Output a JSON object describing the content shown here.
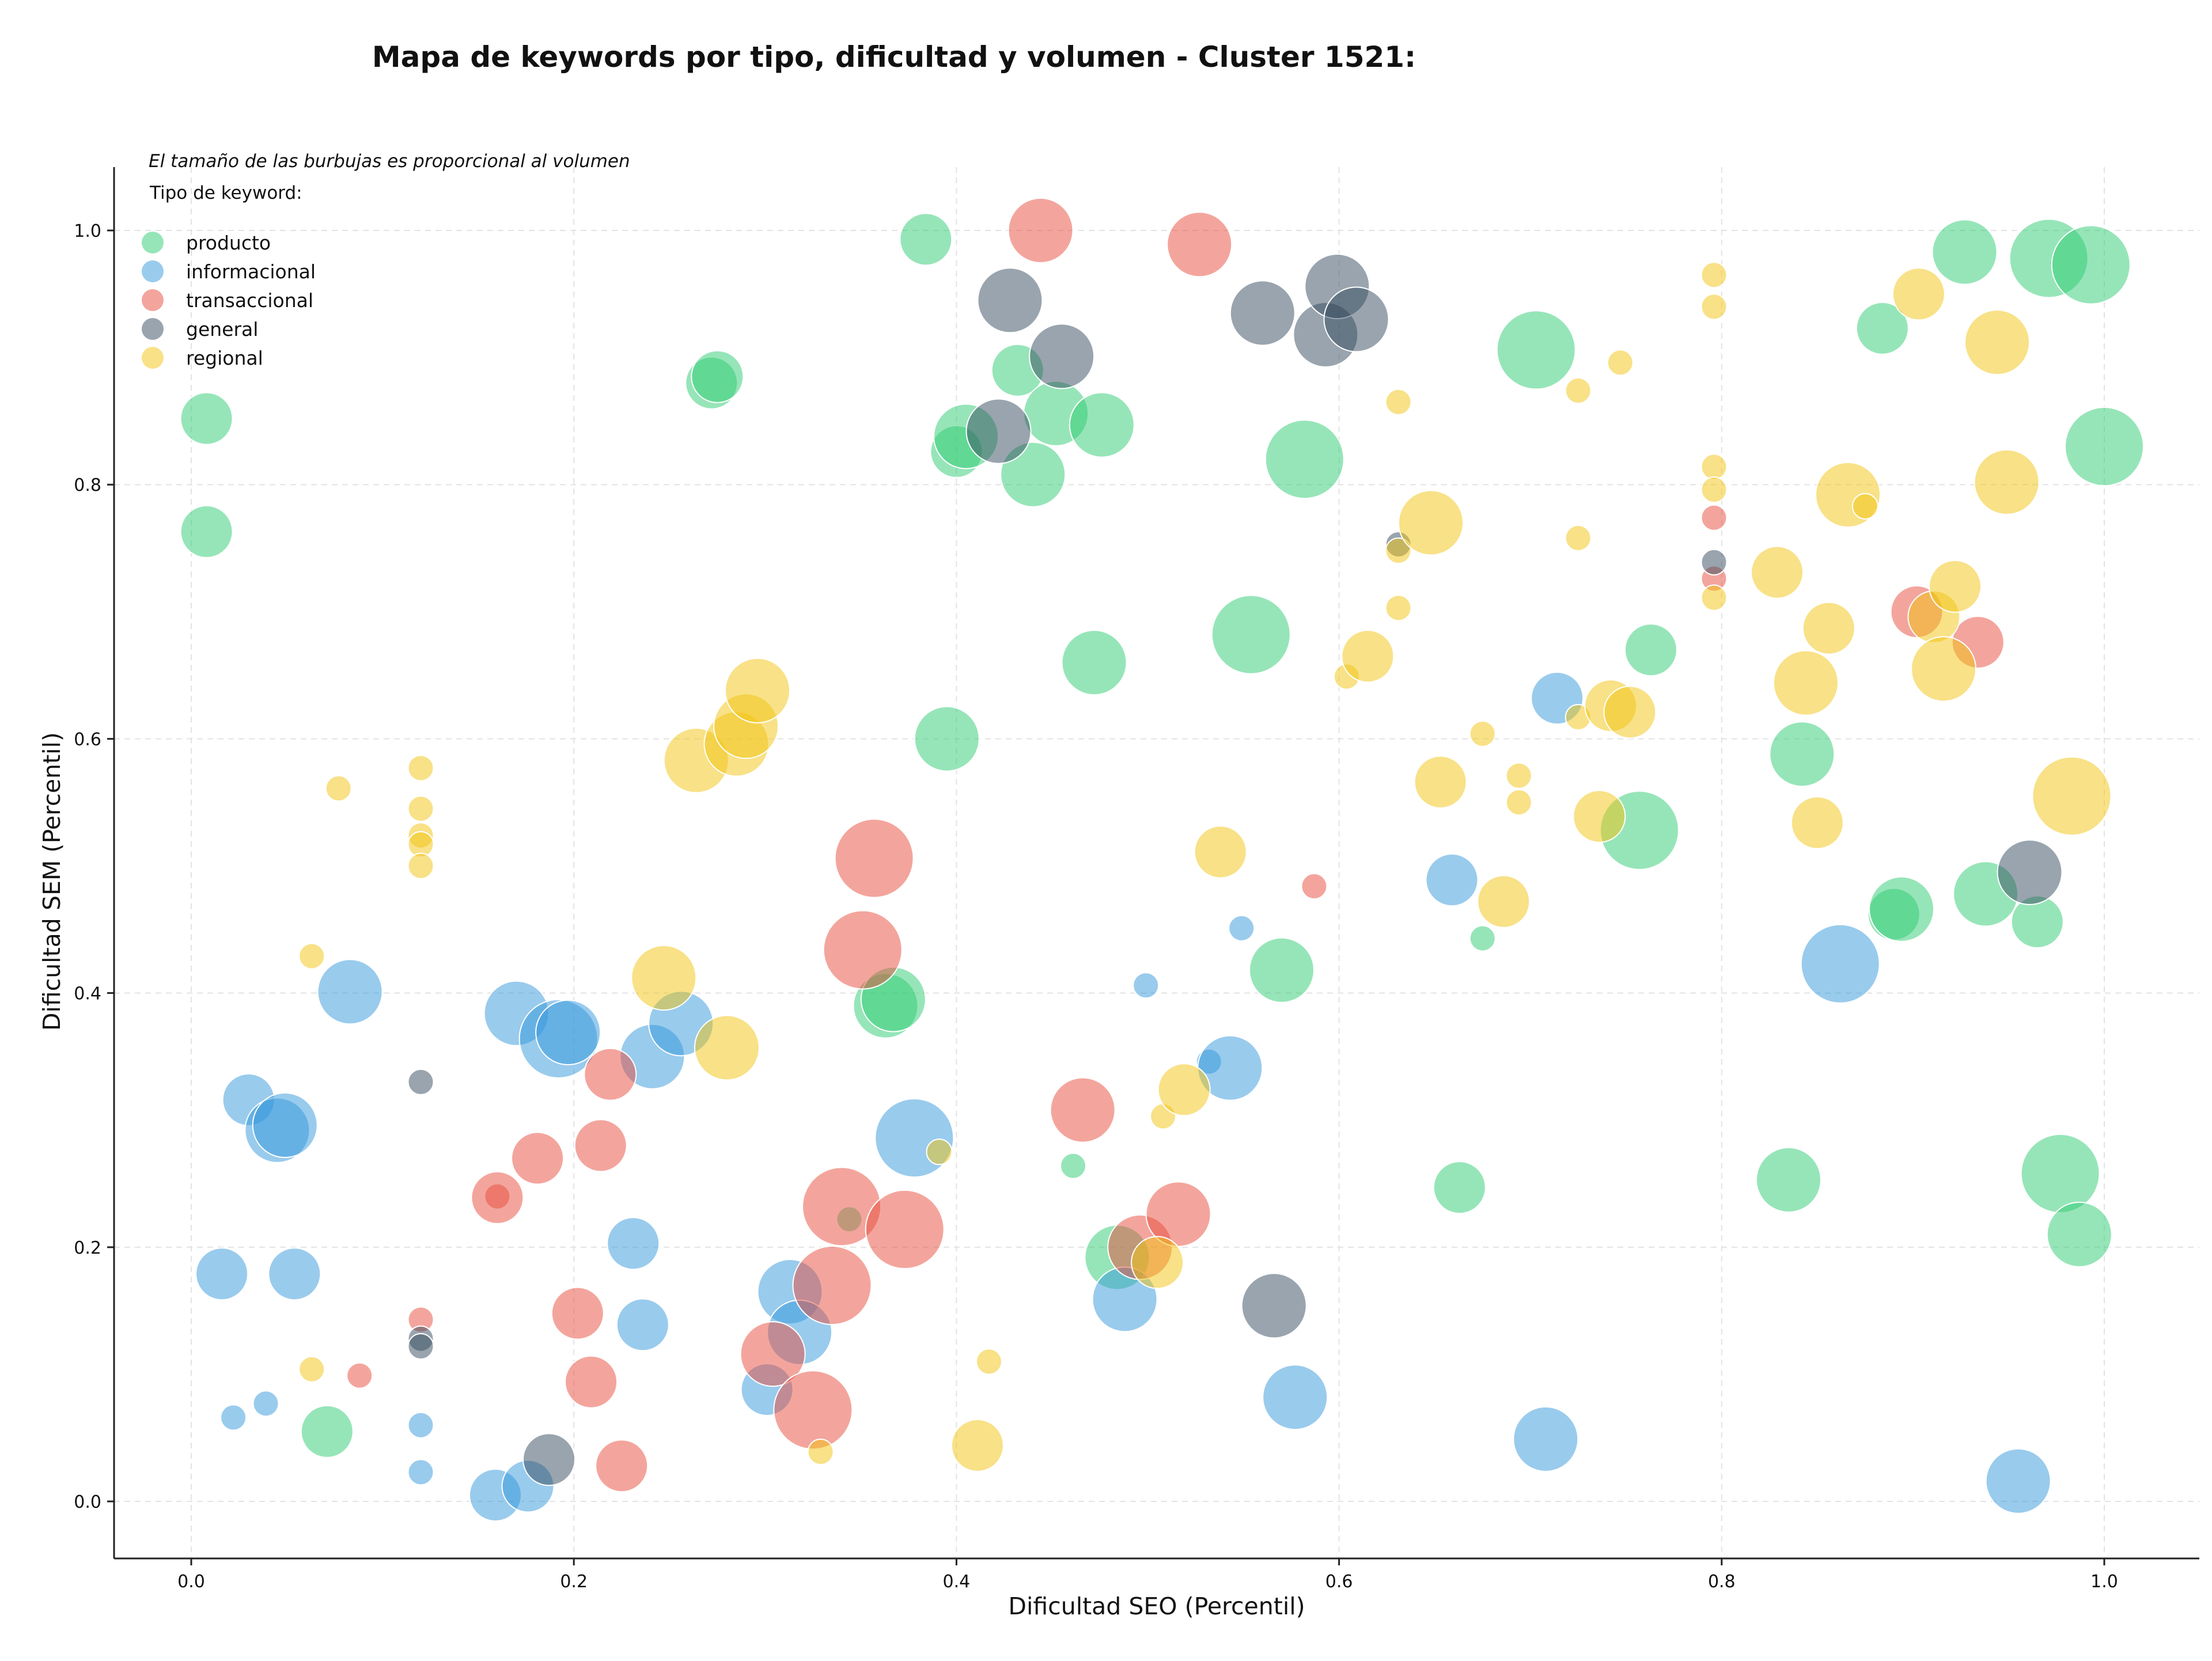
{
  "chart_data": {
    "type": "scatter",
    "title": "Mapa de keywords por tipo, dificultad y volumen - Cluster 1521:",
    "xlabel": "Dificultad SEO (Percentil)",
    "ylabel": "Dificultad SEM (Percentil)",
    "note": "El tamaño de las burbujas es proporcional al volumen",
    "legend_title": "Tipo de keyword:",
    "legend_position": "top-left",
    "grid": true,
    "xlim": [
      -0.04,
      1.05
    ],
    "ylim": [
      -0.043,
      1.05
    ],
    "xticks": [
      0.0,
      0.2,
      0.4,
      0.6,
      0.8,
      1.0
    ],
    "yticks": [
      0.0,
      0.2,
      0.4,
      0.6,
      0.8,
      1.0
    ],
    "xtick_labels": [
      "0.0",
      "0.2",
      "0.4",
      "0.6",
      "0.8",
      "1.0"
    ],
    "ytick_labels": [
      "0.0",
      "0.2",
      "0.4",
      "0.6",
      "0.8",
      "1.0"
    ],
    "size_encoding": "relative volume 1-5",
    "series": [
      {
        "name": "producto",
        "color": "#2ecc71",
        "points": [
          [
            0.008,
            0.852,
            2
          ],
          [
            0.008,
            0.763,
            2
          ],
          [
            0.272,
            0.88,
            2
          ],
          [
            0.275,
            0.885,
            2
          ],
          [
            0.384,
            0.993,
            2
          ],
          [
            0.4,
            0.826,
            2
          ],
          [
            0.405,
            0.838,
            3
          ],
          [
            0.432,
            0.89,
            2
          ],
          [
            0.44,
            0.808,
            3
          ],
          [
            0.452,
            0.856,
            3
          ],
          [
            0.476,
            0.847,
            3
          ],
          [
            0.582,
            0.82,
            4
          ],
          [
            0.703,
            0.906,
            4
          ],
          [
            0.395,
            0.6,
            3
          ],
          [
            0.472,
            0.66,
            3
          ],
          [
            0.554,
            0.682,
            4
          ],
          [
            0.763,
            0.67,
            2
          ],
          [
            0.842,
            0.588,
            3
          ],
          [
            0.757,
            0.528,
            4
          ],
          [
            0.57,
            0.418,
            3
          ],
          [
            0.363,
            0.39,
            3
          ],
          [
            0.367,
            0.395,
            3
          ],
          [
            0.675,
            0.443,
            1
          ],
          [
            0.89,
            0.462,
            2
          ],
          [
            0.894,
            0.466,
            3
          ],
          [
            0.938,
            0.478,
            3
          ],
          [
            0.965,
            0.456,
            2
          ],
          [
            0.884,
            0.923,
            2
          ],
          [
            0.927,
            0.983,
            3
          ],
          [
            0.971,
            0.978,
            4
          ],
          [
            0.993,
            0.973,
            4
          ],
          [
            1.0,
            0.83,
            4
          ],
          [
            0.461,
            0.264,
            1
          ],
          [
            0.484,
            0.192,
            3
          ],
          [
            0.663,
            0.247,
            2
          ],
          [
            0.835,
            0.253,
            3
          ],
          [
            0.977,
            0.258,
            4
          ],
          [
            0.987,
            0.21,
            3
          ],
          [
            0.071,
            0.055,
            2
          ],
          [
            0.344,
            0.222,
            1
          ]
        ]
      },
      {
        "name": "informacional",
        "color": "#3498db",
        "points": [
          [
            0.083,
            0.401,
            3
          ],
          [
            0.17,
            0.384,
            3
          ],
          [
            0.192,
            0.364,
            4
          ],
          [
            0.197,
            0.369,
            3
          ],
          [
            0.241,
            0.35,
            3
          ],
          [
            0.256,
            0.376,
            3
          ],
          [
            0.03,
            0.316,
            2
          ],
          [
            0.045,
            0.292,
            3
          ],
          [
            0.049,
            0.296,
            3
          ],
          [
            0.016,
            0.179,
            2
          ],
          [
            0.054,
            0.179,
            2
          ],
          [
            0.231,
            0.203,
            2
          ],
          [
            0.236,
            0.139,
            2
          ],
          [
            0.022,
            0.066,
            1
          ],
          [
            0.039,
            0.077,
            1
          ],
          [
            0.12,
            0.06,
            1
          ],
          [
            0.12,
            0.023,
            1
          ],
          [
            0.159,
            0.005,
            2
          ],
          [
            0.176,
            0.012,
            2
          ],
          [
            0.301,
            0.088,
            2
          ],
          [
            0.313,
            0.165,
            3
          ],
          [
            0.318,
            0.133,
            3
          ],
          [
            0.378,
            0.286,
            4
          ],
          [
            0.488,
            0.159,
            3
          ],
          [
            0.499,
            0.406,
            1
          ],
          [
            0.532,
            0.346,
            1
          ],
          [
            0.543,
            0.341,
            3
          ],
          [
            0.549,
            0.451,
            1
          ],
          [
            0.577,
            0.082,
            3
          ],
          [
            0.659,
            0.489,
            2
          ],
          [
            0.708,
            0.049,
            3
          ],
          [
            0.714,
            0.632,
            2
          ],
          [
            0.862,
            0.423,
            4
          ],
          [
            0.955,
            0.016,
            3
          ]
        ]
      },
      {
        "name": "transaccional",
        "color": "#e74c3c",
        "points": [
          [
            0.444,
            1.0,
            3
          ],
          [
            0.527,
            0.989,
            3
          ],
          [
            0.357,
            0.506,
            4
          ],
          [
            0.351,
            0.434,
            4
          ],
          [
            0.219,
            0.336,
            2
          ],
          [
            0.214,
            0.28,
            2
          ],
          [
            0.181,
            0.27,
            2
          ],
          [
            0.16,
            0.24,
            1
          ],
          [
            0.16,
            0.239,
            2
          ],
          [
            0.34,
            0.232,
            4
          ],
          [
            0.373,
            0.214,
            4
          ],
          [
            0.335,
            0.17,
            4
          ],
          [
            0.304,
            0.116,
            3
          ],
          [
            0.325,
            0.072,
            4
          ],
          [
            0.202,
            0.148,
            2
          ],
          [
            0.209,
            0.094,
            2
          ],
          [
            0.225,
            0.028,
            2
          ],
          [
            0.12,
            0.143,
            1
          ],
          [
            0.088,
            0.099,
            1
          ],
          [
            0.466,
            0.308,
            3
          ],
          [
            0.496,
            0.2,
            3
          ],
          [
            0.516,
            0.226,
            3
          ],
          [
            0.587,
            0.484,
            1
          ],
          [
            0.796,
            0.774,
            1
          ],
          [
            0.796,
            0.726,
            1
          ],
          [
            0.902,
            0.7,
            2
          ],
          [
            0.934,
            0.676,
            2
          ]
        ]
      },
      {
        "name": "general",
        "color": "#34495e",
        "points": [
          [
            0.428,
            0.945,
            3
          ],
          [
            0.455,
            0.901,
            3
          ],
          [
            0.422,
            0.842,
            3
          ],
          [
            0.56,
            0.935,
            3
          ],
          [
            0.593,
            0.918,
            3
          ],
          [
            0.599,
            0.956,
            3
          ],
          [
            0.609,
            0.93,
            3
          ],
          [
            0.631,
            0.753,
            1
          ],
          [
            0.796,
            0.739,
            1
          ],
          [
            0.12,
            0.33,
            1
          ],
          [
            0.12,
            0.128,
            1
          ],
          [
            0.12,
            0.122,
            1
          ],
          [
            0.187,
            0.033,
            2
          ],
          [
            0.566,
            0.154,
            3
          ],
          [
            0.961,
            0.495,
            3
          ]
        ]
      },
      {
        "name": "regional",
        "color": "#f1c40f",
        "points": [
          [
            0.077,
            0.561,
            1
          ],
          [
            0.12,
            0.577,
            1
          ],
          [
            0.12,
            0.545,
            1
          ],
          [
            0.12,
            0.524,
            1
          ],
          [
            0.12,
            0.517,
            1
          ],
          [
            0.12,
            0.5,
            1
          ],
          [
            0.063,
            0.429,
            1
          ],
          [
            0.063,
            0.104,
            1
          ],
          [
            0.264,
            0.583,
            3
          ],
          [
            0.285,
            0.596,
            3
          ],
          [
            0.29,
            0.61,
            3
          ],
          [
            0.296,
            0.638,
            3
          ],
          [
            0.247,
            0.412,
            3
          ],
          [
            0.28,
            0.357,
            3
          ],
          [
            0.391,
            0.275,
            1
          ],
          [
            0.417,
            0.11,
            1
          ],
          [
            0.411,
            0.044,
            2
          ],
          [
            0.329,
            0.039,
            1
          ],
          [
            0.508,
            0.303,
            1
          ],
          [
            0.519,
            0.324,
            2
          ],
          [
            0.505,
            0.188,
            2
          ],
          [
            0.538,
            0.511,
            2
          ],
          [
            0.631,
            0.865,
            1
          ],
          [
            0.631,
            0.748,
            1
          ],
          [
            0.631,
            0.703,
            1
          ],
          [
            0.604,
            0.649,
            1
          ],
          [
            0.615,
            0.665,
            2
          ],
          [
            0.648,
            0.77,
            3
          ],
          [
            0.653,
            0.566,
            2
          ],
          [
            0.675,
            0.604,
            1
          ],
          [
            0.694,
            0.571,
            1
          ],
          [
            0.694,
            0.55,
            1
          ],
          [
            0.686,
            0.472,
            2
          ],
          [
            0.725,
            0.758,
            1
          ],
          [
            0.725,
            0.874,
            1
          ],
          [
            0.747,
            0.896,
            1
          ],
          [
            0.725,
            0.617,
            1
          ],
          [
            0.736,
            0.539,
            2
          ],
          [
            0.742,
            0.626,
            2
          ],
          [
            0.752,
            0.621,
            2
          ],
          [
            0.796,
            0.965,
            1
          ],
          [
            0.796,
            0.94,
            1
          ],
          [
            0.796,
            0.814,
            1
          ],
          [
            0.796,
            0.796,
            1
          ],
          [
            0.796,
            0.711,
            1
          ],
          [
            0.829,
            0.731,
            2
          ],
          [
            0.844,
            0.644,
            3
          ],
          [
            0.85,
            0.534,
            2
          ],
          [
            0.856,
            0.687,
            2
          ],
          [
            0.866,
            0.792,
            3
          ],
          [
            0.875,
            0.783,
            1
          ],
          [
            0.903,
            0.95,
            2
          ],
          [
            0.911,
            0.696,
            2
          ],
          [
            0.916,
            0.655,
            3
          ],
          [
            0.922,
            0.72,
            2
          ],
          [
            0.944,
            0.912,
            3
          ],
          [
            0.949,
            0.802,
            3
          ],
          [
            0.983,
            0.555,
            4
          ]
        ]
      }
    ]
  }
}
